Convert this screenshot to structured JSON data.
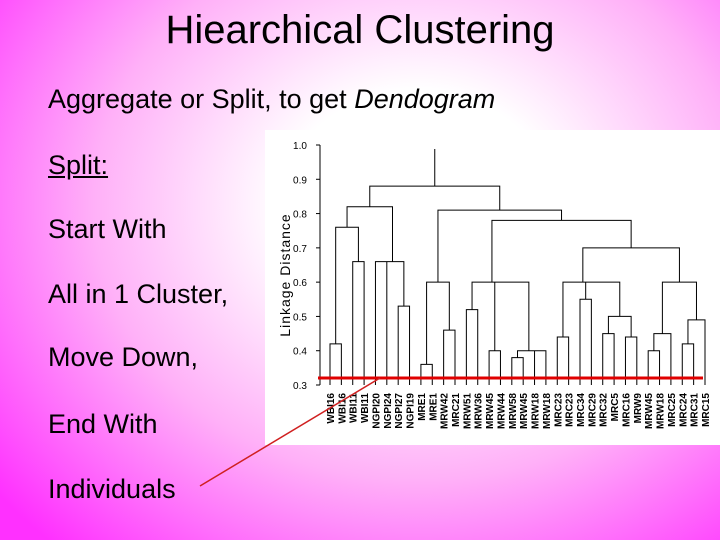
{
  "title": "Hiearchical Clustering",
  "subtitle": {
    "text": "Aggregate or Split, to get ",
    "emphasis": "Dendogram"
  },
  "bullets": [
    "Split:",
    "Start With",
    "All in 1 Cluster,",
    "Move Down,",
    "End With",
    "Individuals"
  ],
  "figure": {
    "axis_label": "Linkage Distance",
    "yticks": [
      {
        "value": 1.0,
        "label": "1.0"
      },
      {
        "value": 0.9,
        "label": "0.9"
      },
      {
        "value": 0.8,
        "label": "0.8"
      },
      {
        "value": 0.7,
        "label": "0.7"
      },
      {
        "value": 0.6,
        "label": "0.6"
      },
      {
        "value": 0.5,
        "label": "0.5"
      },
      {
        "value": 0.4,
        "label": "0.4"
      },
      {
        "value": 0.3,
        "label": "0.3"
      }
    ],
    "leaves": [
      "WBI16",
      "WBI16",
      "WBI11",
      "WBI11",
      "NGPI20",
      "NGPI24",
      "NGPI27",
      "NGPI19",
      "MRE1",
      "MRE1",
      "MRW42",
      "MRC21",
      "MRW51",
      "MRW36",
      "MRW45",
      "MRW44",
      "MRW58",
      "MRW45",
      "MRW18",
      "MRW18",
      "MRC23",
      "MRC23",
      "MRC34",
      "MRC29",
      "MRC32",
      "MRC5",
      "MRC16",
      "MRW9",
      "MRW45",
      "MRW18",
      "MRC25",
      "MRC24",
      "MRC31",
      "MRC15"
    ]
  }
}
